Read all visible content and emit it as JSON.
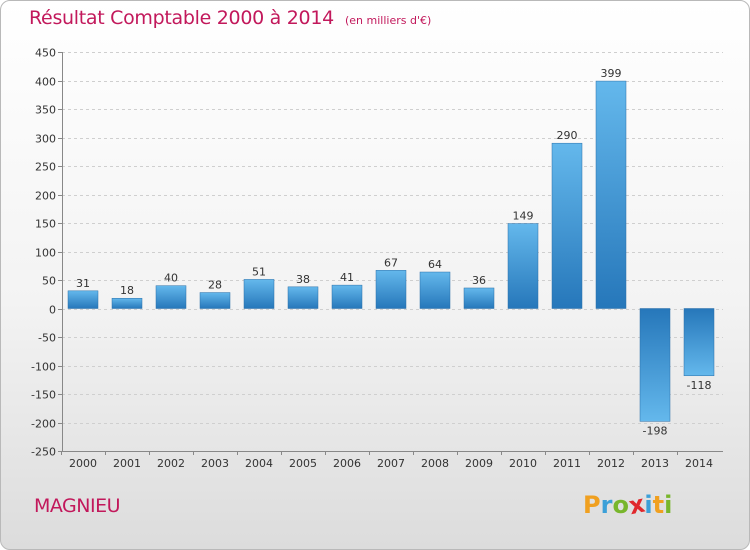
{
  "header": {
    "title": "Résultat Comptable 2000 à 2014",
    "subtitle": "(en milliers d'€)"
  },
  "place_name": "MAGNIEU",
  "logo": {
    "text": "Proxiti",
    "letters": [
      {
        "char": "P",
        "color": "#f0a020"
      },
      {
        "char": "r",
        "color": "#3ca0d8"
      },
      {
        "char": "o",
        "color": "#78b62c"
      },
      {
        "char": "x",
        "color": "#e0282c"
      },
      {
        "char": "i",
        "color": "#3ca0d8"
      },
      {
        "char": "t",
        "color": "#f0a020"
      },
      {
        "char": "i",
        "color": "#78b62c"
      }
    ]
  },
  "chart_data": {
    "type": "bar",
    "title": "Résultat Comptable 2000 à 2014",
    "subtitle": "(en milliers d'€)",
    "categories": [
      "2000",
      "2001",
      "2002",
      "2003",
      "2004",
      "2005",
      "2006",
      "2007",
      "2008",
      "2009",
      "2010",
      "2011",
      "2012",
      "2013",
      "2014"
    ],
    "values": [
      31,
      18,
      40,
      28,
      51,
      38,
      41,
      67,
      64,
      36,
      149,
      290,
      399,
      -198,
      -118
    ],
    "value_labels": [
      "31",
      "18",
      "40",
      "28",
      "51",
      "38",
      "41",
      "67",
      "64",
      "36",
      "149",
      "290",
      "399",
      "-198",
      "-118"
    ],
    "ylim": [
      -250,
      450
    ],
    "yticks": [
      450,
      400,
      350,
      300,
      250,
      200,
      150,
      100,
      50,
      0,
      -50,
      -100,
      -150,
      -200,
      -250
    ],
    "ytick_labels": [
      "450",
      "400",
      "350",
      "300",
      "250",
      "200",
      "150",
      "100",
      "50",
      "0",
      "-50",
      "-100",
      "-150",
      "-200",
      "-250"
    ],
    "grid": true,
    "bar_color_light": "#5fb3e8",
    "bar_color_dark": "#2a7fc0",
    "xlabel": "",
    "ylabel": ""
  }
}
